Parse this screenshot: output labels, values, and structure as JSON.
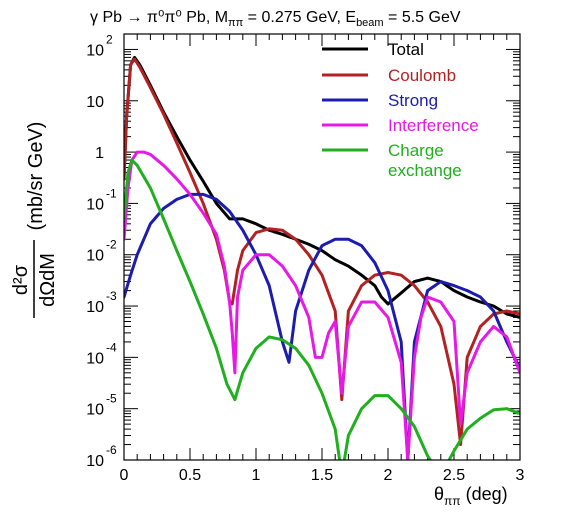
{
  "chart_data": {
    "type": "line",
    "title": {
      "main": "γ Pb → π⁰π⁰ Pb, M",
      "mass_sub": "ππ",
      "mass_value": " = 0.275 GeV, E",
      "energy_sub": "beam",
      "energy_value": " = 5.5 GeV"
    },
    "xlabel": {
      "main": "θ",
      "sub": "ππ",
      "unit": " (deg)"
    },
    "ylabel": {
      "numerator": "d²σ",
      "denominator": "dΩdM",
      "unit": "(mb/sr GeV)"
    },
    "xlim": [
      0,
      3
    ],
    "ylim": [
      1e-06,
      200
    ],
    "yscale": "log",
    "x_ticks": [
      "0",
      "0.5",
      "1",
      "1.5",
      "2",
      "2.5",
      "3"
    ],
    "y_ticks": [
      {
        "base": "10",
        "exp": "2"
      },
      {
        "base": "10",
        "exp": ""
      },
      {
        "base": "1",
        "exp": ""
      },
      {
        "base": "10",
        "exp": "-1"
      },
      {
        "base": "10",
        "exp": "-2"
      },
      {
        "base": "10",
        "exp": "-3"
      },
      {
        "base": "10",
        "exp": "-4"
      },
      {
        "base": "10",
        "exp": "-5"
      },
      {
        "base": "10",
        "exp": "-6"
      }
    ],
    "grid": false,
    "legend_position": "top-right",
    "series": [
      {
        "name": "Total",
        "color": "#000000",
        "points": [
          [
            0,
            0.3
          ],
          [
            0.02,
            5
          ],
          [
            0.05,
            50
          ],
          [
            0.08,
            70
          ],
          [
            0.12,
            50
          ],
          [
            0.2,
            20
          ],
          [
            0.3,
            6
          ],
          [
            0.4,
            2
          ],
          [
            0.5,
            0.7
          ],
          [
            0.6,
            0.27
          ],
          [
            0.7,
            0.1
          ],
          [
            0.8,
            0.05
          ],
          [
            0.9,
            0.05
          ],
          [
            1.0,
            0.04
          ],
          [
            1.1,
            0.03
          ],
          [
            1.2,
            0.025
          ],
          [
            1.3,
            0.02
          ],
          [
            1.4,
            0.016
          ],
          [
            1.5,
            0.012
          ],
          [
            1.6,
            0.008
          ],
          [
            1.7,
            0.006
          ],
          [
            1.8,
            0.004
          ],
          [
            1.9,
            0.0025
          ],
          [
            1.95,
            0.0015
          ],
          [
            2.0,
            0.0011
          ],
          [
            2.1,
            0.0018
          ],
          [
            2.2,
            0.003
          ],
          [
            2.3,
            0.0035
          ],
          [
            2.4,
            0.003
          ],
          [
            2.5,
            0.002
          ],
          [
            2.6,
            0.0015
          ],
          [
            2.7,
            0.0012
          ],
          [
            2.8,
            0.001
          ],
          [
            2.9,
            0.0007
          ],
          [
            3.0,
            0.0006
          ]
        ]
      },
      {
        "name": "Coulomb",
        "color": "#b22222",
        "points": [
          [
            0,
            0.3
          ],
          [
            0.02,
            5
          ],
          [
            0.05,
            50
          ],
          [
            0.08,
            65
          ],
          [
            0.12,
            45
          ],
          [
            0.2,
            18
          ],
          [
            0.3,
            5.5
          ],
          [
            0.4,
            1.5
          ],
          [
            0.5,
            0.4
          ],
          [
            0.6,
            0.1
          ],
          [
            0.7,
            0.02
          ],
          [
            0.76,
            0.005
          ],
          [
            0.8,
            0.0012
          ],
          [
            0.82,
            0.0011
          ],
          [
            0.86,
            0.005
          ],
          [
            0.9,
            0.012
          ],
          [
            1.0,
            0.027
          ],
          [
            1.1,
            0.032
          ],
          [
            1.2,
            0.03
          ],
          [
            1.3,
            0.02
          ],
          [
            1.4,
            0.01
          ],
          [
            1.5,
            0.004
          ],
          [
            1.6,
            0.0008
          ],
          [
            1.65,
            1.5e-05
          ],
          [
            1.7,
            0.0008
          ],
          [
            1.8,
            0.0025
          ],
          [
            1.9,
            0.004
          ],
          [
            2.0,
            0.0045
          ],
          [
            2.1,
            0.004
          ],
          [
            2.2,
            0.0025
          ],
          [
            2.3,
            0.0012
          ],
          [
            2.4,
            0.0004
          ],
          [
            2.5,
            3e-05
          ],
          [
            2.55,
            2e-06
          ],
          [
            2.6,
            0.0001
          ],
          [
            2.7,
            0.0004
          ],
          [
            2.8,
            0.0007
          ],
          [
            2.9,
            0.0008
          ],
          [
            3.0,
            0.0007
          ]
        ]
      },
      {
        "name": "Strong",
        "color": "#1c1cae",
        "points": [
          [
            0,
            0.0015
          ],
          [
            0.05,
            0.004
          ],
          [
            0.1,
            0.01
          ],
          [
            0.2,
            0.04
          ],
          [
            0.3,
            0.08
          ],
          [
            0.4,
            0.12
          ],
          [
            0.5,
            0.15
          ],
          [
            0.6,
            0.15
          ],
          [
            0.7,
            0.12
          ],
          [
            0.8,
            0.07
          ],
          [
            0.9,
            0.03
          ],
          [
            1.0,
            0.01
          ],
          [
            1.1,
            0.0025
          ],
          [
            1.2,
            0.0002
          ],
          [
            1.25,
            8e-05
          ],
          [
            1.3,
            0.0008
          ],
          [
            1.4,
            0.005
          ],
          [
            1.5,
            0.015
          ],
          [
            1.6,
            0.02
          ],
          [
            1.7,
            0.02
          ],
          [
            1.8,
            0.015
          ],
          [
            1.9,
            0.007
          ],
          [
            2.0,
            0.002
          ],
          [
            2.1,
            0.0002
          ],
          [
            2.15,
            1e-06
          ],
          [
            2.2,
            0.0002
          ],
          [
            2.3,
            0.002
          ],
          [
            2.4,
            0.003
          ],
          [
            2.5,
            0.0025
          ],
          [
            2.6,
            0.002
          ],
          [
            2.7,
            0.0015
          ],
          [
            2.8,
            0.0008
          ],
          [
            2.9,
            0.0002
          ],
          [
            3.0,
            6e-05
          ]
        ]
      },
      {
        "name": "Interference",
        "color": "#e619e6",
        "points": [
          [
            0,
            0.02
          ],
          [
            0.03,
            0.2
          ],
          [
            0.06,
            0.7
          ],
          [
            0.1,
            1.0
          ],
          [
            0.15,
            1.0
          ],
          [
            0.2,
            0.9
          ],
          [
            0.3,
            0.55
          ],
          [
            0.4,
            0.3
          ],
          [
            0.5,
            0.15
          ],
          [
            0.6,
            0.065
          ],
          [
            0.7,
            0.025
          ],
          [
            0.76,
            0.006
          ],
          [
            0.8,
            0.0012
          ],
          [
            0.82,
            0.0003
          ],
          [
            0.84,
            5e-05
          ],
          [
            0.86,
            0.0015
          ],
          [
            0.9,
            0.005
          ],
          [
            1.0,
            0.01
          ],
          [
            1.1,
            0.01
          ],
          [
            1.2,
            0.006
          ],
          [
            1.3,
            0.0025
          ],
          [
            1.4,
            0.0006
          ],
          [
            1.45,
            0.0001
          ],
          [
            1.5,
            0.0001
          ],
          [
            1.55,
            0.0003
          ],
          [
            1.6,
            0.0005
          ],
          [
            1.65,
            2e-05
          ],
          [
            1.7,
            0.0004
          ],
          [
            1.8,
            0.0012
          ],
          [
            1.9,
            0.0012
          ],
          [
            2.0,
            0.0006
          ],
          [
            2.1,
            8e-05
          ],
          [
            2.15,
            1e-06
          ],
          [
            2.2,
            0.0001
          ],
          [
            2.25,
            0.0006
          ],
          [
            2.3,
            0.0015
          ],
          [
            2.4,
            0.0012
          ],
          [
            2.5,
            0.0005
          ],
          [
            2.55,
            5e-06
          ],
          [
            2.6,
            5e-05
          ],
          [
            2.7,
            0.0002
          ],
          [
            2.8,
            0.0004
          ],
          [
            2.9,
            0.00025
          ],
          [
            3.0,
            5e-05
          ]
        ]
      },
      {
        "name": "Charge exchange",
        "color": "#1faf1f",
        "points": [
          [
            0,
            0.05
          ],
          [
            0.03,
            0.4
          ],
          [
            0.06,
            0.7
          ],
          [
            0.1,
            0.55
          ],
          [
            0.2,
            0.2
          ],
          [
            0.3,
            0.05
          ],
          [
            0.4,
            0.012
          ],
          [
            0.5,
            0.003
          ],
          [
            0.6,
            0.0007
          ],
          [
            0.7,
            0.00015
          ],
          [
            0.78,
            3e-05
          ],
          [
            0.84,
            1.5e-05
          ],
          [
            0.9,
            5e-05
          ],
          [
            1.0,
            0.00015
          ],
          [
            1.1,
            0.00025
          ],
          [
            1.2,
            0.00022
          ],
          [
            1.3,
            0.00015
          ],
          [
            1.4,
            7e-05
          ],
          [
            1.5,
            2e-05
          ],
          [
            1.6,
            4e-06
          ],
          [
            1.65,
            5e-07
          ],
          [
            1.7,
            3e-06
          ],
          [
            1.8,
            1e-05
          ],
          [
            1.9,
            1.8e-05
          ],
          [
            2.0,
            1.8e-05
          ],
          [
            2.1,
            1e-05
          ],
          [
            2.2,
            4.5e-06
          ],
          [
            2.3,
            1.2e-06
          ],
          [
            2.4,
            5e-07
          ],
          [
            2.5,
            1.5e-06
          ],
          [
            2.6,
            4e-06
          ],
          [
            2.7,
            6.5e-06
          ],
          [
            2.8,
            9.5e-06
          ],
          [
            2.9,
            1e-05
          ],
          [
            3.0,
            8e-06
          ]
        ]
      }
    ],
    "legend": [
      {
        "label": "Total",
        "color": "#000000",
        "label_color": "#000000"
      },
      {
        "label": "Coulomb",
        "color": "#b22222",
        "label_color": "#b22222"
      },
      {
        "label": "Strong",
        "color": "#1c1cae",
        "label_color": "#1c1cae"
      },
      {
        "label": "Interference",
        "color": "#e619e6",
        "label_color": "#e619e6"
      },
      {
        "label": "Charge",
        "label2": "exchange",
        "color": "#1faf1f",
        "label_color": "#1faf1f"
      }
    ]
  }
}
